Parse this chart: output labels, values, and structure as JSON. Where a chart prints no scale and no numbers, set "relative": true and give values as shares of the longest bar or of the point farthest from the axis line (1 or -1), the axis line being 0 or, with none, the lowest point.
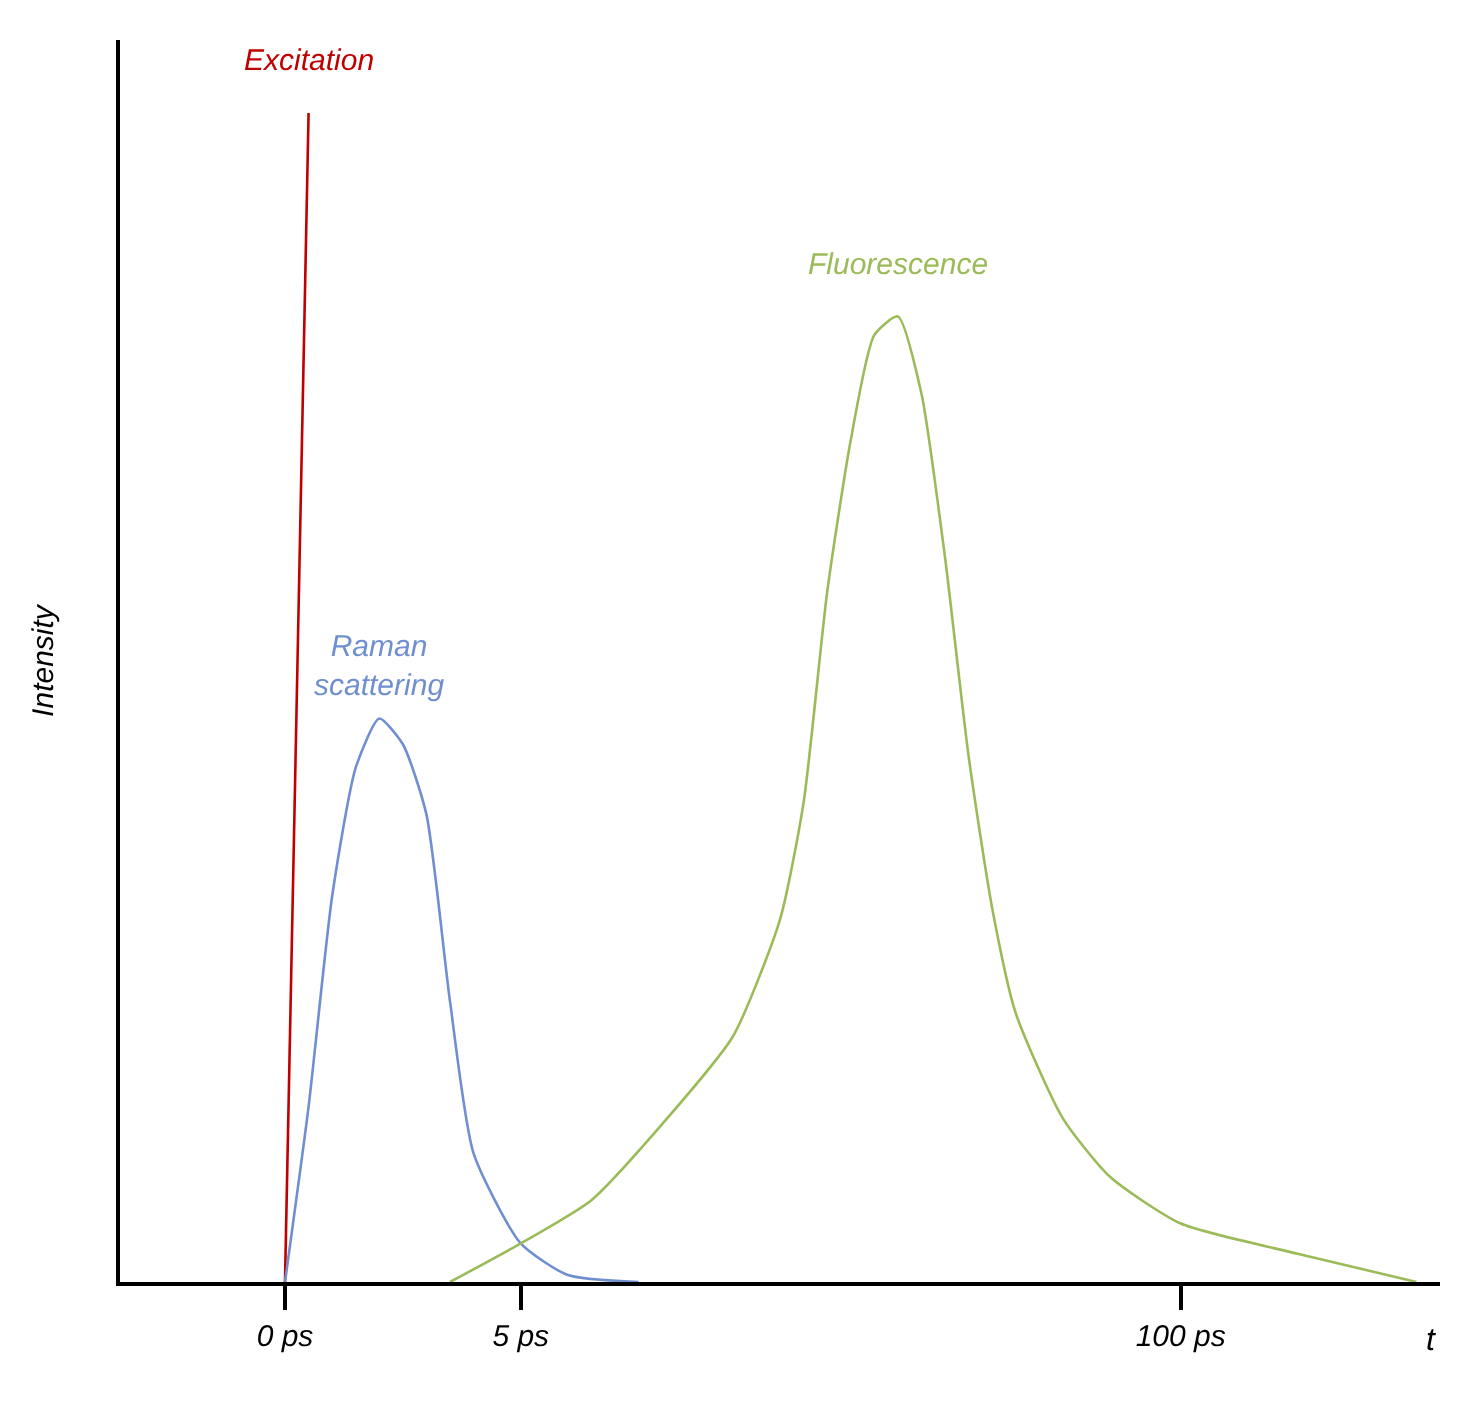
{
  "chart_data": {
    "type": "line",
    "relative": true,
    "xlabel": "t",
    "ylabel": "Intensity",
    "categories": [
      null,
      null,
      null,
      null,
      null,
      null,
      null,
      "0 ps",
      null,
      null,
      null,
      null,
      null,
      null,
      null,
      null,
      null,
      "5 ps",
      null,
      null,
      null,
      null,
      null,
      null,
      null,
      null,
      null,
      null,
      null,
      null,
      null,
      null,
      null,
      null,
      null,
      null,
      null,
      null,
      null,
      null,
      null,
      null,
      null,
      null,
      null,
      "100 ps",
      null,
      null,
      null,
      null,
      null,
      null,
      null,
      null,
      null,
      null,
      null
    ],
    "series": [
      {
        "name": "Excitation",
        "color": "#c00000",
        "values": [
          null,
          null,
          null,
          null,
          null,
          null,
          null,
          0,
          1,
          null,
          null,
          null,
          null,
          null,
          null,
          null,
          null,
          null,
          null,
          null,
          null,
          null,
          null,
          null,
          null,
          null,
          null,
          null,
          null,
          null,
          null,
          null,
          null,
          null,
          null,
          null,
          null,
          null,
          null,
          null,
          null,
          null,
          null,
          null,
          null,
          null,
          null,
          null,
          null,
          null,
          null,
          null,
          null,
          null,
          null,
          null,
          null
        ]
      },
      {
        "name": "Raman scattering",
        "color": "#6f8fd0",
        "values": [
          null,
          null,
          null,
          null,
          null,
          null,
          null,
          0,
          0.15,
          0.33,
          0.44,
          0.482,
          0.46,
          0.4,
          0.24,
          0.11,
          null,
          0.033,
          null,
          0.006,
          null,
          null,
          0,
          null,
          null,
          null,
          null,
          null,
          null,
          null,
          null,
          null,
          null,
          null,
          null,
          null,
          null,
          null,
          null,
          null,
          null,
          null,
          null,
          null,
          null,
          null,
          null,
          null,
          null,
          null,
          null,
          null,
          null,
          null,
          null,
          null,
          null
        ]
      },
      {
        "name": "Fluorescence",
        "color": "#9bbb59",
        "values": [
          null,
          null,
          null,
          null,
          null,
          null,
          null,
          null,
          null,
          null,
          null,
          null,
          null,
          null,
          0,
          null,
          null,
          0.033,
          null,
          null,
          0.07,
          null,
          null,
          0.135,
          null,
          null,
          0.21,
          null,
          0.31,
          0.41,
          0.59,
          0.72,
          0.81,
          0.826,
          0.76,
          0.62,
          0.45,
          0.32,
          0.23,
          null,
          0.14,
          null,
          0.09,
          null,
          null,
          0.05,
          null,
          null,
          null,
          null,
          0.024,
          null,
          null,
          null,
          null,
          0,
          null
        ]
      }
    ],
    "legend": false,
    "grid": false
  }
}
